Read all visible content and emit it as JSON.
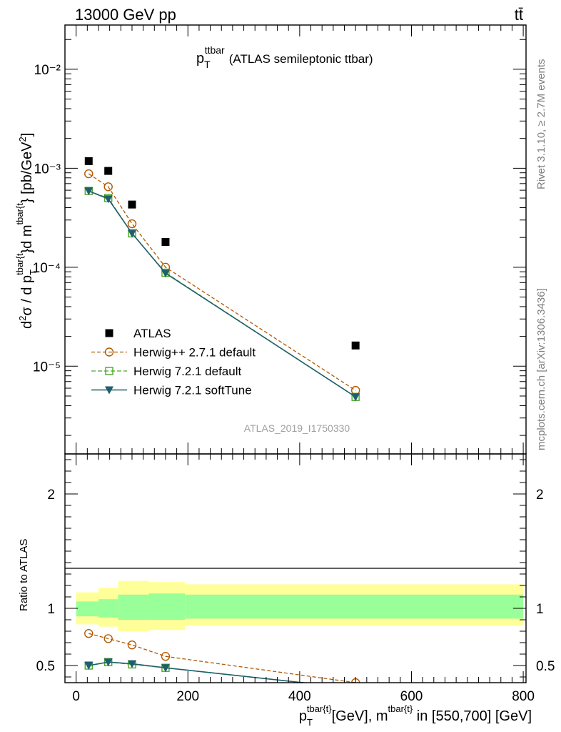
{
  "header": {
    "left": "13000 GeV pp",
    "right": "tt̄",
    "plot_title_main": "p",
    "plot_title_sub": "T",
    "plot_title_sup": "ttbar",
    "plot_title_rest": "(ATLAS semileptonic ttbar)",
    "watermark": "ATLAS_2019_I1750330"
  },
  "side": {
    "rivet": "Rivet 3.1.10, ≥ 2.7M events",
    "mcplots": "mcplots.cern.ch [arXiv:1306.3436]"
  },
  "colors": {
    "data": "#000000",
    "herwigpp": "#b35900",
    "herwig721": "#4aa62a",
    "softtune": "#1f5f6b",
    "band_inner": "#99ff99",
    "band_outer": "#ffff99"
  },
  "chart_data": [
    {
      "type": "scatter",
      "panel": "main",
      "ylabel": "d²σ / d p_T^{tbar{t}}d m^{tbar{t}} [pb/GeV²]",
      "yscale": "log",
      "ylim": [
        1.3e-06,
        0.028
      ],
      "xlim": [
        -20,
        805
      ],
      "ytick_labels": [
        "10⁻⁵",
        "10⁻⁴",
        "10⁻³",
        "10⁻²"
      ],
      "legend": [
        "ATLAS",
        "Herwig++ 2.7.1 default",
        "Herwig 7.2.1 default",
        "Herwig 7.2.1 softTune"
      ],
      "legend_position": "lower-left",
      "series": [
        {
          "name": "ATLAS",
          "style": "data",
          "x": [
            22.5,
            57.5,
            100,
            160,
            500
          ],
          "y": [
            0.00118,
            0.00094,
            0.00043,
            0.00018,
            1.62e-05
          ]
        },
        {
          "name": "Herwig++ 2.7.1 default",
          "style": "herwigpp",
          "x": [
            22.5,
            57.5,
            100,
            160,
            500
          ],
          "y": [
            0.00088,
            0.00065,
            0.000275,
            0.0001,
            5.7e-06
          ]
        },
        {
          "name": "Herwig 7.2.1 default",
          "style": "herwig721",
          "x": [
            22.5,
            57.5,
            100,
            160,
            500
          ],
          "y": [
            0.00059,
            0.0005,
            0.00022,
            8.8e-05,
            4.9e-06
          ]
        },
        {
          "name": "Herwig 7.2.1 softTune",
          "style": "softtune",
          "x": [
            22.5,
            57.5,
            100,
            160,
            500
          ],
          "y": [
            0.00059,
            0.00049,
            0.00022,
            8.7e-05,
            4.9e-06
          ]
        }
      ]
    },
    {
      "type": "line",
      "panel": "ratio",
      "ylabel": "Ratio to ATLAS",
      "ylim": [
        0.35,
        2.35
      ],
      "xlim": [
        -20,
        805
      ],
      "xlabel": "p_T^{tbar{t}}[GeV], m^{tbar{t}} in [550,700] [GeV]",
      "xtick_labels": [
        "0",
        "200",
        "400",
        "600",
        "800"
      ],
      "ytick_labels": [
        "0.5",
        "1",
        "2"
      ],
      "bands": {
        "edges": [
          0,
          40,
          75,
          130,
          195,
          800
        ],
        "inner": [
          [
            0.93,
            1.06
          ],
          [
            0.92,
            1.08
          ],
          [
            0.9,
            1.12
          ],
          [
            0.9,
            1.13
          ],
          [
            0.91,
            1.12
          ]
        ],
        "outer": [
          [
            0.86,
            1.14
          ],
          [
            0.84,
            1.18
          ],
          [
            0.8,
            1.24
          ],
          [
            0.81,
            1.23
          ],
          [
            0.85,
            1.21
          ]
        ]
      },
      "series": [
        {
          "name": "Herwig++ 2.7.1 default",
          "style": "herwigpp",
          "x": [
            22.5,
            57.5,
            100,
            160,
            500
          ],
          "y": [
            0.78,
            0.735,
            0.68,
            0.58,
            0.35
          ]
        },
        {
          "name": "Herwig 7.2.1 default",
          "style": "herwig721",
          "x": [
            22.5,
            57.5,
            100,
            160,
            500
          ],
          "y": [
            0.5,
            0.53,
            0.51,
            0.48,
            0.3
          ]
        },
        {
          "name": "Herwig 7.2.1 softTune",
          "style": "softtune",
          "x": [
            22.5,
            57.5,
            100,
            160,
            500
          ],
          "y": [
            0.5,
            0.53,
            0.515,
            0.48,
            0.3
          ]
        }
      ]
    }
  ]
}
